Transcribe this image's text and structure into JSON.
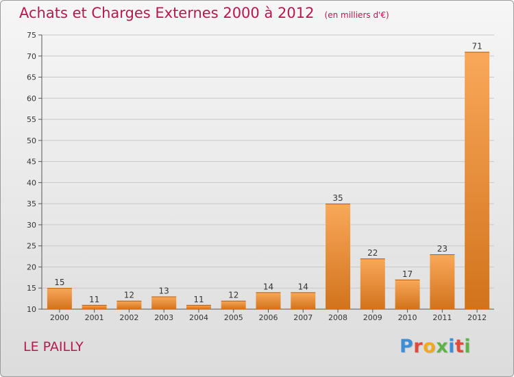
{
  "chart_data": {
    "type": "bar",
    "title": "Achats et Charges Externes 2000 à 2012",
    "subtitle": "(en milliers d'€)",
    "categories": [
      "2000",
      "2001",
      "2002",
      "2003",
      "2004",
      "2005",
      "2006",
      "2007",
      "2008",
      "2009",
      "2010",
      "2011",
      "2012"
    ],
    "values": [
      15,
      11,
      12,
      13,
      11,
      12,
      14,
      14,
      35,
      22,
      17,
      23,
      71
    ],
    "ylim": [
      10,
      75
    ],
    "yticks": [
      10,
      15,
      20,
      25,
      30,
      35,
      40,
      45,
      50,
      55,
      60,
      65,
      70,
      75
    ],
    "grid": true,
    "colors": {
      "bar_light": "#f9a85a",
      "bar_dark": "#d2731c",
      "grid": "#c8c8c8",
      "title": "#b8174e"
    }
  },
  "footer": {
    "commune": "LE PAILLY"
  },
  "logo": {
    "letters": [
      {
        "ch": "P",
        "color": "#3a8fd8"
      },
      {
        "ch": "r",
        "color": "#e04a3c"
      },
      {
        "ch": "o",
        "color": "#f2a81d"
      },
      {
        "ch": "x",
        "color": "#5db347"
      },
      {
        "ch": "i",
        "color": "#3a8fd8"
      },
      {
        "ch": "t",
        "color": "#e04a3c"
      },
      {
        "ch": "i",
        "color": "#5db347"
      }
    ]
  }
}
